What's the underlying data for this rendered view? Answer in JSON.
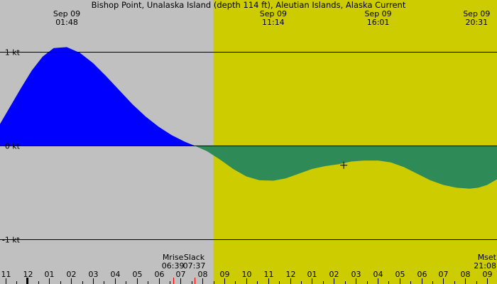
{
  "chart_data": {
    "type": "area",
    "title": "Bishop Point, Unalaska Island (depth 114 ft), Aleutian Islands, Alaska Current",
    "y_ticks": [
      {
        "value": 1,
        "label": "1 kt"
      },
      {
        "value": 0,
        "label": "0 kt"
      },
      {
        "value": -1,
        "label": "-1 kt"
      }
    ],
    "ylim": [
      -1.35,
      1.55
    ],
    "x_range_hours": [
      -13.25,
      9.45
    ],
    "hour_ticks": [
      {
        "hour": -13,
        "label": "11"
      },
      {
        "hour": -12,
        "label": "12"
      },
      {
        "hour": -11,
        "label": "01"
      },
      {
        "hour": -10,
        "label": "02"
      },
      {
        "hour": -9,
        "label": "03"
      },
      {
        "hour": -8,
        "label": "04"
      },
      {
        "hour": -7,
        "label": "05"
      },
      {
        "hour": -6,
        "label": "06"
      },
      {
        "hour": -5,
        "label": "07"
      },
      {
        "hour": -4,
        "label": "08"
      },
      {
        "hour": -3,
        "label": "09"
      },
      {
        "hour": -2,
        "label": "10"
      },
      {
        "hour": -1,
        "label": "11"
      },
      {
        "hour": 0,
        "label": "12"
      },
      {
        "hour": 1,
        "label": "01"
      },
      {
        "hour": 2,
        "label": "02"
      },
      {
        "hour": 3,
        "label": "03"
      },
      {
        "hour": 4,
        "label": "04"
      },
      {
        "hour": 5,
        "label": "05"
      },
      {
        "hour": 6,
        "label": "06"
      },
      {
        "hour": 7,
        "label": "07"
      },
      {
        "hour": 8,
        "label": "08"
      },
      {
        "hour": 9,
        "label": "09"
      }
    ],
    "top_labels": [
      {
        "hour": -10.2,
        "date": "Sep 09",
        "time": "01:48"
      },
      {
        "hour": -0.77,
        "date": "Sep 09",
        "time": "11:14"
      },
      {
        "hour": 4.02,
        "date": "Sep 09",
        "time": "16:01"
      },
      {
        "hour": 8.52,
        "date": "Sep 09",
        "time": "20:31"
      }
    ],
    "daylight": {
      "start_hour": -3.5,
      "end_hour": 9.45
    },
    "event_labels": [
      {
        "hour": -5.35,
        "name": "Mrise",
        "time": "06:39",
        "align": "middle"
      },
      {
        "hour": -4.38,
        "name": "Slack",
        "time": "07:37",
        "align": "middle"
      },
      {
        "hour": 9.45,
        "name": "Mset",
        "time": "21:08",
        "align": "end"
      }
    ],
    "red_ticks_hours": [
      -5.35,
      -4.38
    ],
    "midnight_tick_hour": -12,
    "crosshair": {
      "hour": 2.45,
      "value": -0.21
    },
    "series": [
      {
        "color_positive": "#0000ff",
        "color_negative": "#2e8b57",
        "x": [
          -13.25,
          -12.8,
          -12.3,
          -11.8,
          -11.3,
          -10.8,
          -10.2,
          -9.6,
          -9.0,
          -8.4,
          -7.8,
          -7.2,
          -6.6,
          -6.0,
          -5.4,
          -4.8,
          -4.38,
          -3.8,
          -3.2,
          -2.6,
          -2.0,
          -1.4,
          -0.77,
          -0.2,
          0.4,
          1.0,
          1.6,
          2.2,
          2.8,
          3.4,
          4.02,
          4.6,
          5.2,
          5.8,
          6.4,
          7.0,
          7.6,
          8.2,
          8.6,
          9.0,
          9.45
        ],
        "y": [
          0.23,
          0.41,
          0.61,
          0.8,
          0.95,
          1.04,
          1.05,
          0.99,
          0.88,
          0.74,
          0.59,
          0.44,
          0.31,
          0.2,
          0.11,
          0.04,
          0.0,
          -0.06,
          -0.15,
          -0.25,
          -0.33,
          -0.37,
          -0.375,
          -0.35,
          -0.3,
          -0.25,
          -0.22,
          -0.2,
          -0.17,
          -0.16,
          -0.16,
          -0.18,
          -0.23,
          -0.3,
          -0.37,
          -0.42,
          -0.45,
          -0.46,
          -0.45,
          -0.42,
          -0.36
        ]
      }
    ]
  },
  "colors": {
    "background_night": "#c0c0c0",
    "background_day": "#cccc00",
    "gridline": "#000000",
    "tick_red": "#ff0000"
  }
}
